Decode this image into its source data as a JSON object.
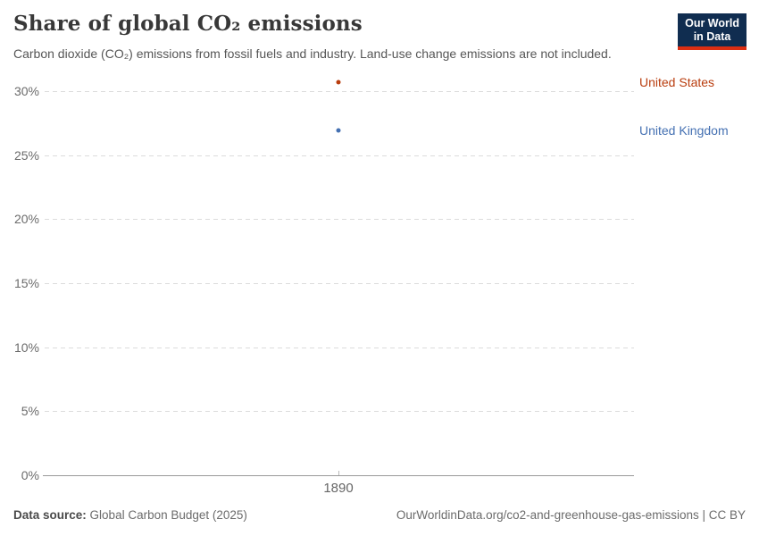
{
  "header": {
    "title": "Share of global CO₂ emissions",
    "subtitle": "Carbon dioxide (CO₂) emissions from fossil fuels and industry. Land-use change emissions are not included.",
    "logo": {
      "line1": "Our World",
      "line2": "in Data",
      "bg_color": "#102d50",
      "accent_color": "#dc2e12"
    }
  },
  "chart_data": {
    "type": "scatter",
    "title": "Share of global CO₂ emissions",
    "x": [
      1890
    ],
    "x_tick_labels": [
      "1890"
    ],
    "series": [
      {
        "name": "United States",
        "values": [
          30.7
        ],
        "color": "#b93d0e"
      },
      {
        "name": "United Kingdom",
        "values": [
          26.9
        ],
        "color": "#4470b2"
      }
    ],
    "ylim": [
      0,
      30
    ],
    "yticks": [
      0,
      5,
      10,
      15,
      20,
      25,
      30
    ],
    "ytick_labels": [
      "0%",
      "5%",
      "10%",
      "15%",
      "20%",
      "25%",
      "30%"
    ],
    "grid": "horizontal dashed",
    "legend_position": "right-entity-labels"
  },
  "footer": {
    "datasource_label": "Data source:",
    "datasource_value": "Global Carbon Budget (2025)",
    "credit": "OurWorldinData.org/co2-and-greenhouse-gas-emissions | CC BY"
  }
}
